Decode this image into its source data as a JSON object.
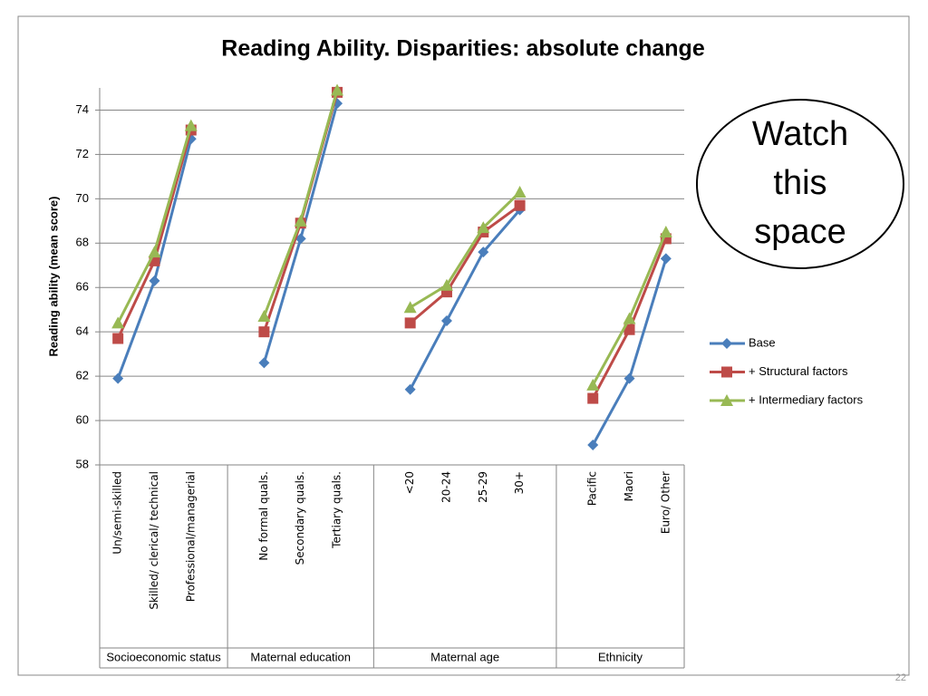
{
  "chart_data": {
    "type": "line",
    "title": "Reading Ability. Disparities: absolute change",
    "y_label": "Reading ability (mean score)",
    "annotation": [
      "Watch",
      "this",
      "space"
    ],
    "page_number": "22",
    "categories": [
      "Un/semi-skilled",
      "Skilled/ clerical/ technical",
      "Professional/managerial",
      null,
      "No formal quals.",
      "Secondary quals.",
      "Tertiary quals.",
      null,
      "<20",
      "20-24",
      "25-29",
      "30+",
      null,
      "Pacific",
      "Maori",
      "Euro/ Other"
    ],
    "groups": [
      "Socioeconomic status",
      "Maternal education",
      "Maternal age",
      "Ethnicity"
    ],
    "series": [
      {
        "name": "Base",
        "color": "#4a7ebb",
        "marker": "diamond",
        "values": [
          61.9,
          66.3,
          72.7,
          null,
          62.6,
          68.2,
          74.3,
          null,
          61.4,
          64.5,
          67.6,
          69.5,
          null,
          58.9,
          61.9,
          67.3
        ]
      },
      {
        "name": "+ Structural factors",
        "color": "#be4b48",
        "marker": "square",
        "values": [
          63.7,
          67.2,
          73.1,
          null,
          64.0,
          68.9,
          74.8,
          null,
          64.4,
          65.8,
          68.5,
          69.7,
          null,
          61.0,
          64.1,
          68.2
        ]
      },
      {
        "name": "+ Intermediary factors",
        "color": "#98b954",
        "marker": "triangle",
        "values": [
          64.4,
          67.6,
          73.3,
          null,
          64.7,
          69.0,
          74.9,
          null,
          65.1,
          66.1,
          68.7,
          70.3,
          null,
          61.6,
          64.6,
          68.5
        ]
      }
    ],
    "ylim": [
      58,
      75
    ],
    "yticks": [
      58,
      60,
      62,
      64,
      66,
      68,
      70,
      72,
      74
    ],
    "grid": true,
    "legend": "right"
  }
}
